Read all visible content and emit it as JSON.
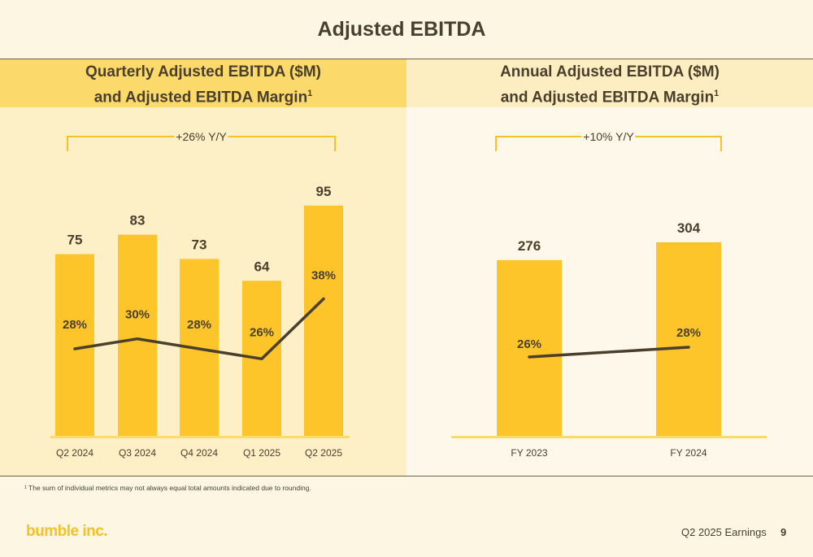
{
  "page": {
    "title": "Adjusted EBITDA",
    "footnote": "¹ The sum of individual metrics may not always equal total amounts indicated due to rounding.",
    "logo": "bumble inc.",
    "earnings_label": "Q2 2025 Earnings",
    "page_number": "9"
  },
  "colors": {
    "bar": "#fdc52a",
    "line": "#4a3f2c",
    "bracket": "#f6c227",
    "text": "#4a3f2c"
  },
  "chart_data": [
    {
      "type": "bar",
      "title_line1": "Quarterly Adjusted EBITDA ($M)",
      "title_line2": "and Adjusted EBITDA Margin",
      "title_sup": "1",
      "categories": [
        "Q2 2024",
        "Q3 2024",
        "Q4 2024",
        "Q1 2025",
        "Q2 2025"
      ],
      "series": [
        {
          "values": [
            75,
            83,
            73,
            64,
            95
          ],
          "labels": [
            "75",
            "83",
            "73",
            "64",
            "95"
          ]
        },
        {
          "type": "line",
          "values": [
            28,
            30,
            28,
            26,
            38
          ],
          "labels": [
            "28%",
            "30%",
            "28%",
            "26%",
            "38%"
          ]
        }
      ],
      "annotation": "+26% Y/Y"
    },
    {
      "type": "bar",
      "title_line1": "Annual Adjusted EBITDA ($M)",
      "title_line2": "and Adjusted EBITDA Margin",
      "title_sup": "1",
      "categories": [
        "FY 2023",
        "FY 2024"
      ],
      "series": [
        {
          "values": [
            276,
            304
          ],
          "labels": [
            "276",
            "304"
          ]
        },
        {
          "type": "line",
          "values": [
            26,
            28
          ],
          "labels": [
            "26%",
            "28%"
          ]
        }
      ],
      "annotation": "+10% Y/Y"
    }
  ]
}
